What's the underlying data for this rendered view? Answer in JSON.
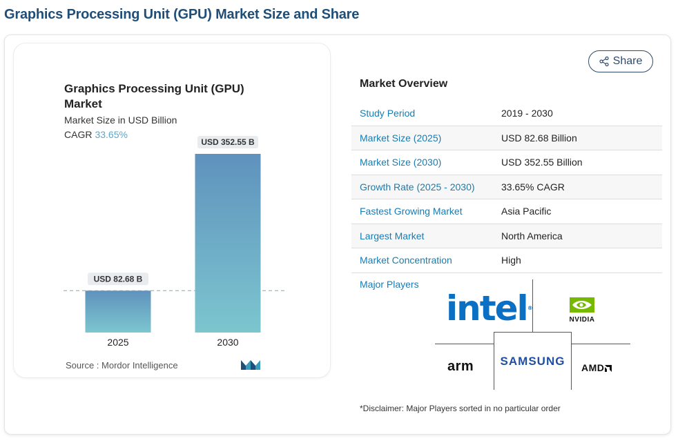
{
  "page": {
    "title": "Graphics Processing Unit (GPU) Market Size and Share"
  },
  "share": {
    "label": "Share",
    "icon": "share-icon"
  },
  "chart_data": {
    "type": "bar",
    "title": "Graphics Processing Unit (GPU) Market",
    "subtitle": "Market Size in USD Billion",
    "cagr_label": "CAGR",
    "cagr_value": "33.65%",
    "categories": [
      "2025",
      "2030"
    ],
    "values": [
      82.68,
      352.55
    ],
    "data_labels": [
      "USD 82.68 B",
      "USD 352.55 B"
    ],
    "xlabel": "",
    "ylabel": "",
    "ylim": [
      0,
      352.55
    ],
    "source": "Source :  Mordor Intelligence"
  },
  "overview": {
    "title": "Market Overview",
    "rows": [
      {
        "key": "Study Period",
        "value": "2019 - 2030"
      },
      {
        "key": "Market Size (2025)",
        "value": "USD 82.68 Billion"
      },
      {
        "key": "Market Size (2030)",
        "value": "USD 352.55 Billion"
      },
      {
        "key": "Growth Rate (2025 - 2030)",
        "value": "33.65% CAGR"
      },
      {
        "key": "Fastest Growing Market",
        "value": "Asia Pacific"
      },
      {
        "key": "Largest Market",
        "value": "North America"
      },
      {
        "key": "Market Concentration",
        "value": "High"
      }
    ]
  },
  "players": {
    "label": "Major Players",
    "intel": "intel",
    "nvidia": "NVIDIA",
    "arm": "arm",
    "samsung": "SAMSUNG",
    "amd": "AMD"
  },
  "disclaimer": "*Disclaimer: Major Players sorted in no particular order",
  "colors": {
    "title": "#1f4e79",
    "link": "#1a7bb0",
    "bar_top": "#5f92bd",
    "bar_bottom": "#7cc6cf",
    "cagr": "#5ba7c8"
  }
}
